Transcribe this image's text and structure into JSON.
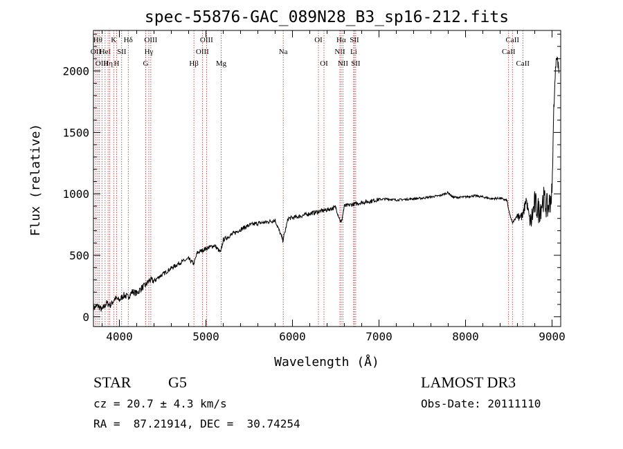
{
  "chart_data": {
    "type": "line",
    "title": "spec-55876-GAC_089N28_B3_sp16-212.fits",
    "xlabel": "Wavelength (Å)",
    "ylabel": "Flux (relative)",
    "xlim": [
      3700,
      9100
    ],
    "ylim": [
      -80,
      2330
    ],
    "xticks": [
      4000,
      5000,
      6000,
      7000,
      8000,
      9000
    ],
    "yticks": [
      0,
      500,
      1000,
      1500,
      2000
    ],
    "series": [
      {
        "x": [
          3700,
          3750,
          3800,
          3850,
          3900,
          3950,
          4000,
          4050,
          4100,
          4150,
          4200,
          4250,
          4300,
          4350,
          4400,
          4450,
          4500,
          4600,
          4700,
          4800,
          4860,
          4900,
          5000,
          5100,
          5170,
          5200,
          5300,
          5400,
          5500,
          5600,
          5700,
          5800,
          5890,
          5950,
          6000,
          6100,
          6200,
          6300,
          6400,
          6500,
          6563,
          6600,
          6700,
          6800,
          6900,
          7000,
          7100,
          7200,
          7300,
          7400,
          7500,
          7600,
          7700,
          7800,
          7850,
          7900,
          8000,
          8100,
          8200,
          8300,
          8400,
          8480,
          8500,
          8542,
          8600,
          8662,
          8700,
          8750,
          8800,
          8850,
          8900,
          8950,
          9000,
          9020,
          9050,
          9080
        ],
        "values": [
          70,
          90,
          55,
          110,
          95,
          150,
          135,
          175,
          160,
          205,
          190,
          230,
          255,
          300,
          290,
          320,
          345,
          395,
          440,
          470,
          430,
          520,
          555,
          580,
          520,
          625,
          670,
          710,
          745,
          760,
          770,
          785,
          620,
          800,
          805,
          820,
          840,
          855,
          870,
          890,
          760,
          900,
          915,
          930,
          940,
          955,
          958,
          950,
          955,
          960,
          965,
          975,
          985,
          1010,
          975,
          970,
          975,
          985,
          975,
          960,
          965,
          945,
          860,
          760,
          830,
          810,
          960,
          750,
          920,
          860,
          960,
          880,
          1000,
          1700,
          2150,
          2000
        ]
      }
    ],
    "lines": [
      {
        "x": 3727,
        "row": 1,
        "label": "OII"
      },
      {
        "x": 3750,
        "row": 0,
        "label": "Hθ"
      },
      {
        "x": 3770,
        "row": 0,
        "label": ""
      },
      {
        "x": 3798,
        "row": 2,
        "label": "OIII"
      },
      {
        "x": 3835,
        "row": 1,
        "label": "HeI"
      },
      {
        "x": 3869,
        "row": 2,
        "label": "Hη"
      },
      {
        "x": 3889,
        "row": 2,
        "label": ""
      },
      {
        "x": 3934,
        "row": 0,
        "label": "K"
      },
      {
        "x": 3968,
        "row": 2,
        "label": "H"
      },
      {
        "x": 4026,
        "row": 1,
        "label": "SII"
      },
      {
        "x": 4102,
        "row": 0,
        "label": "Hδ"
      },
      {
        "x": 4304,
        "row": 2,
        "label": "G"
      },
      {
        "x": 4340,
        "row": 1,
        "label": "Hγ"
      },
      {
        "x": 4363,
        "row": 0,
        "label": "OIII"
      },
      {
        "x": 4861,
        "row": 2,
        "label": "Hβ"
      },
      {
        "x": 4959,
        "row": 1,
        "label": "OIII"
      },
      {
        "x": 5007,
        "row": 0,
        "label": "OIII"
      },
      {
        "x": 5176,
        "row": 2,
        "label": "Mg"
      },
      {
        "x": 5893,
        "row": 1,
        "label": "Na"
      },
      {
        "x": 6300,
        "row": 0,
        "label": "OI"
      },
      {
        "x": 6364,
        "row": 2,
        "label": "OI"
      },
      {
        "x": 6548,
        "row": 1,
        "label": "NII"
      },
      {
        "x": 6563,
        "row": 0,
        "label": "Hα"
      },
      {
        "x": 6583,
        "row": 2,
        "label": "NII"
      },
      {
        "x": 6707,
        "row": 1,
        "label": "Li"
      },
      {
        "x": 6716,
        "row": 0,
        "label": "SII"
      },
      {
        "x": 6731,
        "row": 2,
        "label": "SII"
      },
      {
        "x": 8498,
        "row": 1,
        "label": "CaII"
      },
      {
        "x": 8542,
        "row": 0,
        "label": "CaII"
      },
      {
        "x": 8662,
        "row": 2,
        "label": "CaII"
      }
    ]
  },
  "info": {
    "class": "STAR",
    "subclass": "G5",
    "survey": "LAMOST DR3",
    "cz": "cz = 20.7 ± 4.3 km/s",
    "obs_date": "Obs-Date: 20111110",
    "radec": "RA =  87.21914, DEC =  30.74254"
  },
  "colors": {
    "spectrum": "#000000",
    "line_markers": "#b22222",
    "axes": "#000000",
    "background": "#ffffff"
  }
}
